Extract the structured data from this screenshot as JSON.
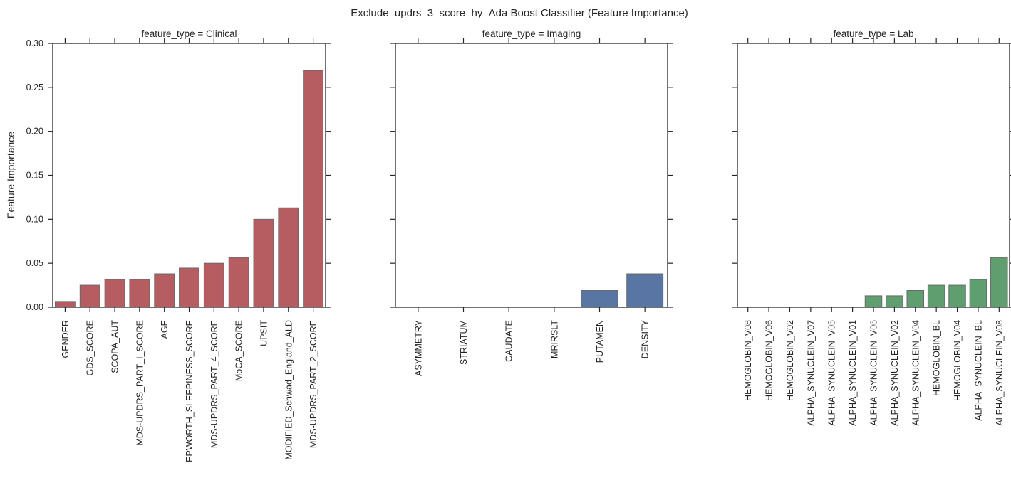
{
  "suptitle": "Exclude_updrs_3_score_hy_Ada Boost Classifier (Feature Importance)",
  "ylabel": "Feature Importance",
  "yticks": [
    "0.00",
    "0.05",
    "0.10",
    "0.15",
    "0.20",
    "0.25",
    "0.30"
  ],
  "colors": {
    "clinical": "#b55d60",
    "imaging": "#5975a4",
    "lab": "#5f9e6e",
    "axis": "#262626"
  },
  "chart_data": [
    {
      "type": "bar",
      "title": "feature_type = Clinical",
      "color": "#b55d60",
      "ylim": [
        0,
        0.3
      ],
      "grid": false,
      "categories": [
        "GENDER",
        "GDS_SCORE",
        "SCOPA_AUT",
        "MDS-UPDRS_PART_I_SCORE",
        "AGE",
        "EPWORTH_SLEEPINESS_SCORE",
        "MDS-UPDRS_PART_4_SCORE",
        "MoCA_SCORE",
        "UPSIT",
        "MODIFIED_Schwad_England_ALD",
        "MDS-UPDRS_PART_2_SCORE"
      ],
      "values": [
        0.0066,
        0.025,
        0.0315,
        0.0315,
        0.038,
        0.0445,
        0.05,
        0.0565,
        0.1,
        0.113,
        0.269
      ]
    },
    {
      "type": "bar",
      "title": "feature_type = Imaging",
      "color": "#5975a4",
      "ylim": [
        0,
        0.3
      ],
      "grid": false,
      "categories": [
        "ASYMMETRY",
        "STRIATUM",
        "CAUDATE",
        "MRIRSLT",
        "PUTAMEN",
        "DENSITY"
      ],
      "values": [
        0,
        0,
        0,
        0,
        0.019,
        0.038
      ]
    },
    {
      "type": "bar",
      "title": "feature_type = Lab",
      "color": "#5f9e6e",
      "ylim": [
        0,
        0.3
      ],
      "grid": false,
      "categories": [
        "HEMOGLOBIN_V08",
        "HEMOGLOBIN_V06",
        "HEMOGLOBIN_V02",
        "ALPHA_SYNUCLEIN_V07",
        "ALPHA_SYNUCLEIN_V05",
        "ALPHA_SYNUCLEIN_V01",
        "ALPHA_SYNUCLEIN_V06",
        "ALPHA_SYNUCLEIN_V02",
        "ALPHA_SYNUCLEIN_V04",
        "HEMOGLOBIN_BL",
        "HEMOGLOBIN_V04",
        "ALPHA_SYNUCLEIN_BL",
        "ALPHA_SYNUCLEIN_V08"
      ],
      "values": [
        0,
        0,
        0,
        0,
        0,
        0,
        0.013,
        0.013,
        0.019,
        0.025,
        0.025,
        0.0315,
        0.0565
      ]
    }
  ]
}
